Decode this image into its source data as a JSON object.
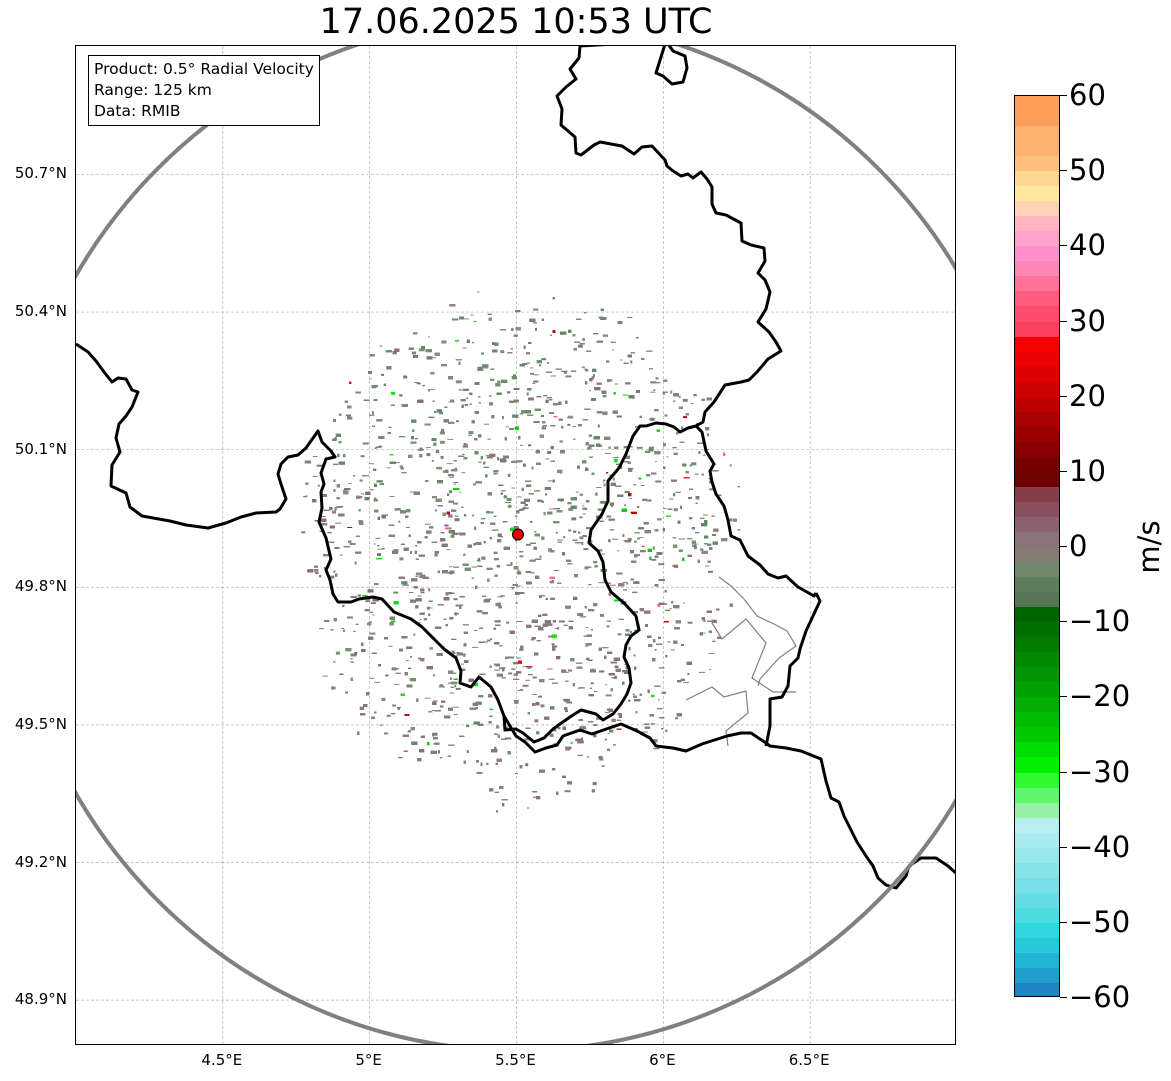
{
  "title": "17.06.2025 10:53 UTC",
  "info_box": {
    "product": "Product: 0.5° Radial Velocity",
    "range": "Range: 125 km",
    "data": "Data: RMIB"
  },
  "map": {
    "lon_range": [
      4.0,
      7.0
    ],
    "lat_range": [
      48.8,
      50.98
    ],
    "lon_ticks": [
      {
        "value": 4.5,
        "label": "4.5°E"
      },
      {
        "value": 5.0,
        "label": "5°E"
      },
      {
        "value": 5.5,
        "label": "5.5°E"
      },
      {
        "value": 6.0,
        "label": "6°E"
      },
      {
        "value": 6.5,
        "label": "6.5°E"
      }
    ],
    "lat_ticks": [
      {
        "value": 50.7,
        "label": "50.7°N"
      },
      {
        "value": 50.4,
        "label": "50.4°N"
      },
      {
        "value": 50.1,
        "label": "50.1°N"
      },
      {
        "value": 49.8,
        "label": "49.8°N"
      },
      {
        "value": 49.5,
        "label": "49.5°N"
      },
      {
        "value": 49.2,
        "label": "49.2°N"
      },
      {
        "value": 48.9,
        "label": "48.9°N"
      }
    ],
    "grid": true,
    "radar_site": {
      "lon": 5.505,
      "lat": 49.915
    },
    "range_ring": {
      "center_lon": 5.505,
      "center_lat": 49.915,
      "radius_lon": 1.74,
      "radius_lat": 1.125
    },
    "echo_extent": {
      "radius_lon": 0.72,
      "radius_lat": 0.51
    },
    "colors": {
      "ring": "#808080",
      "border": "#000000",
      "admin_border": "#808080",
      "grid": "#b0b0b0",
      "site_marker": "#e00000"
    }
  },
  "colorbar": {
    "unit": "m/s",
    "min": -60,
    "max": 60,
    "ticks": [
      {
        "value": 60,
        "label": "60"
      },
      {
        "value": 50,
        "label": "50"
      },
      {
        "value": 40,
        "label": "40"
      },
      {
        "value": 30,
        "label": "30"
      },
      {
        "value": 20,
        "label": "20"
      },
      {
        "value": 10,
        "label": "10"
      },
      {
        "value": 0,
        "label": "0"
      },
      {
        "value": -10,
        "label": "−10"
      },
      {
        "value": -20,
        "label": "−20"
      },
      {
        "value": -30,
        "label": "−30"
      },
      {
        "value": -40,
        "label": "−40"
      },
      {
        "value": -50,
        "label": "−50"
      },
      {
        "value": -60,
        "label": "−60"
      }
    ],
    "bands": [
      {
        "from": 56,
        "to": 60,
        "color": "#ff9e5a"
      },
      {
        "from": 52,
        "to": 56,
        "color": "#ffb16f"
      },
      {
        "from": 50,
        "to": 52,
        "color": "#ffc27e"
      },
      {
        "from": 48,
        "to": 50,
        "color": "#ffd690"
      },
      {
        "from": 46,
        "to": 48,
        "color": "#ffe79e"
      },
      {
        "from": 44,
        "to": 46,
        "color": "#ffd2b4"
      },
      {
        "from": 42,
        "to": 44,
        "color": "#ffb6c1"
      },
      {
        "from": 40,
        "to": 42,
        "color": "#ffa3cc"
      },
      {
        "from": 38,
        "to": 40,
        "color": "#ff8fd0"
      },
      {
        "from": 36,
        "to": 38,
        "color": "#ff86b4"
      },
      {
        "from": 34,
        "to": 36,
        "color": "#ff709a"
      },
      {
        "from": 32,
        "to": 34,
        "color": "#ff5a80"
      },
      {
        "from": 30,
        "to": 32,
        "color": "#ff4d6e"
      },
      {
        "from": 28,
        "to": 30,
        "color": "#fb3f5f"
      },
      {
        "from": 26,
        "to": 28,
        "color": "#f40000"
      },
      {
        "from": 24,
        "to": 26,
        "color": "#ed0000"
      },
      {
        "from": 22,
        "to": 24,
        "color": "#dd0000"
      },
      {
        "from": 20,
        "to": 22,
        "color": "#cc0000"
      },
      {
        "from": 18,
        "to": 20,
        "color": "#bb0000"
      },
      {
        "from": 16,
        "to": 18,
        "color": "#aa0000"
      },
      {
        "from": 14,
        "to": 16,
        "color": "#990000"
      },
      {
        "from": 12,
        "to": 14,
        "color": "#880000"
      },
      {
        "from": 10,
        "to": 12,
        "color": "#770000"
      },
      {
        "from": 8,
        "to": 10,
        "color": "#6f0000"
      },
      {
        "from": 6,
        "to": 8,
        "color": "#853e4a"
      },
      {
        "from": 4,
        "to": 6,
        "color": "#8a5060"
      },
      {
        "from": 2,
        "to": 4,
        "color": "#8b6270"
      },
      {
        "from": 0,
        "to": 2,
        "color": "#8a7378"
      },
      {
        "from": -2,
        "to": 0,
        "color": "#857a74"
      },
      {
        "from": -4,
        "to": -2,
        "color": "#6e8868"
      },
      {
        "from": -6,
        "to": -4,
        "color": "#5e7e5c"
      },
      {
        "from": -8,
        "to": -6,
        "color": "#547652"
      },
      {
        "from": -10,
        "to": -8,
        "color": "#006400"
      },
      {
        "from": -12,
        "to": -10,
        "color": "#006f00"
      },
      {
        "from": -14,
        "to": -12,
        "color": "#007b00"
      },
      {
        "from": -16,
        "to": -14,
        "color": "#008800"
      },
      {
        "from": -18,
        "to": -16,
        "color": "#009400"
      },
      {
        "from": -20,
        "to": -18,
        "color": "#00a100"
      },
      {
        "from": -22,
        "to": -20,
        "color": "#00ad00"
      },
      {
        "from": -24,
        "to": -22,
        "color": "#00bb00"
      },
      {
        "from": -26,
        "to": -24,
        "color": "#00c800"
      },
      {
        "from": -28,
        "to": -26,
        "color": "#00dd00"
      },
      {
        "from": -30,
        "to": -28,
        "color": "#00f000"
      },
      {
        "from": -32,
        "to": -30,
        "color": "#30fa30"
      },
      {
        "from": -34,
        "to": -32,
        "color": "#62f56e"
      },
      {
        "from": -36,
        "to": -34,
        "color": "#97f0a8"
      },
      {
        "from": -38,
        "to": -36,
        "color": "#b9eef0"
      },
      {
        "from": -40,
        "to": -38,
        "color": "#a9ebee"
      },
      {
        "from": -42,
        "to": -40,
        "color": "#98e7eb"
      },
      {
        "from": -44,
        "to": -42,
        "color": "#87e3e8"
      },
      {
        "from": -46,
        "to": -44,
        "color": "#76e0e6"
      },
      {
        "from": -48,
        "to": -46,
        "color": "#65dde3"
      },
      {
        "from": -50,
        "to": -48,
        "color": "#4cdbe0"
      },
      {
        "from": -52,
        "to": -50,
        "color": "#2ed8de"
      },
      {
        "from": -54,
        "to": -52,
        "color": "#28c8d8"
      },
      {
        "from": -56,
        "to": -54,
        "color": "#22b4d2"
      },
      {
        "from": -58,
        "to": -56,
        "color": "#209ece"
      },
      {
        "from": -60,
        "to": -58,
        "color": "#1f84c6"
      }
    ]
  }
}
